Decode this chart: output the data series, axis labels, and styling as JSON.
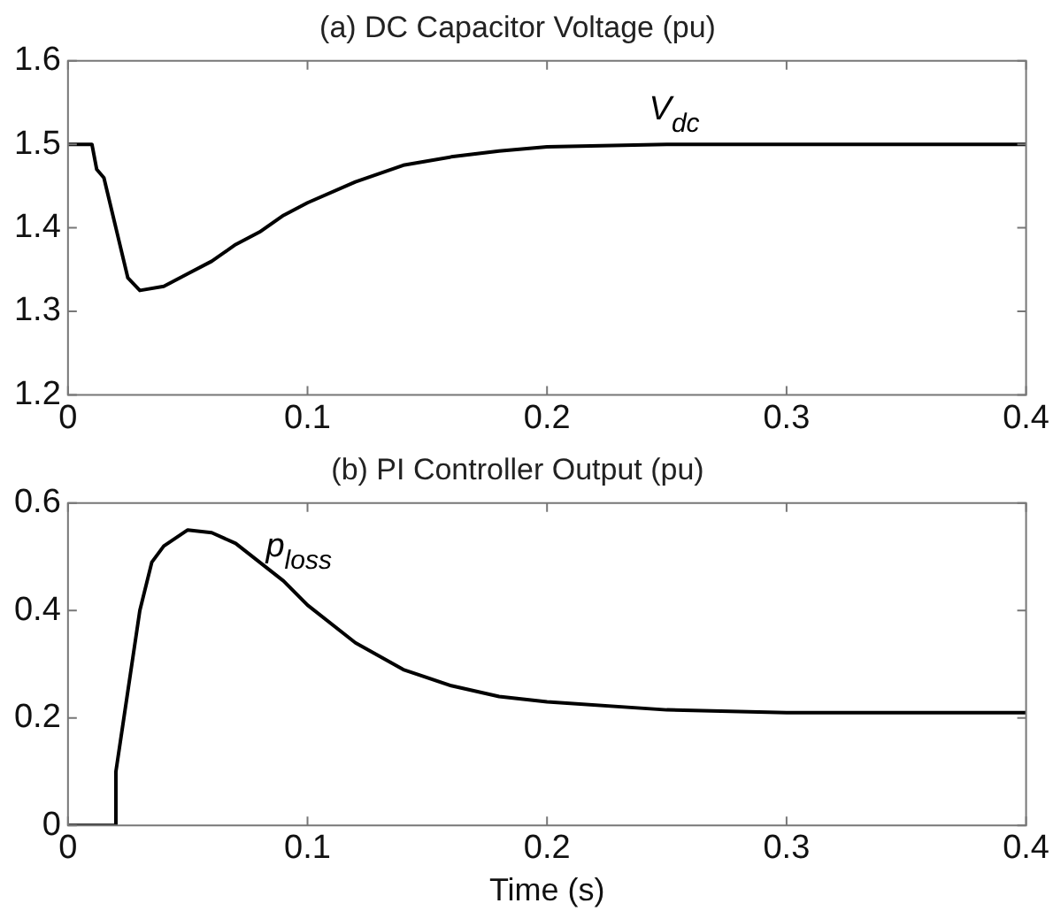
{
  "chart_data": [
    {
      "type": "line",
      "title": "(a) DC Capacitor Voltage (pu)",
      "xlim": [
        0,
        0.4
      ],
      "xticks": [
        0,
        0.1,
        0.2,
        0.3,
        0.4
      ],
      "ylim": [
        1.2,
        1.6
      ],
      "yticks": [
        1.2,
        1.3,
        1.4,
        1.5,
        1.6
      ],
      "grid": false,
      "legend": false,
      "marker": "none",
      "line_style": "solid",
      "series": [
        {
          "name": "V$_{dc}$",
          "color": "#000000",
          "x": [
            0,
            0.01,
            0.012,
            0.015,
            0.02,
            0.025,
            0.03,
            0.04,
            0.05,
            0.06,
            0.07,
            0.08,
            0.09,
            0.1,
            0.12,
            0.14,
            0.16,
            0.18,
            0.2,
            0.25,
            0.3,
            0.35,
            0.4
          ],
          "values": [
            1.5,
            1.5,
            1.47,
            1.46,
            1.4,
            1.34,
            1.325,
            1.33,
            1.345,
            1.36,
            1.38,
            1.395,
            1.415,
            1.43,
            1.455,
            1.475,
            1.485,
            1.492,
            1.497,
            1.5,
            1.5,
            1.5,
            1.5
          ]
        }
      ]
    },
    {
      "type": "line",
      "title": "(b) PI Controller Output (pu)",
      "xlabel": "Time (s)",
      "xlim": [
        0,
        0.4
      ],
      "xticks": [
        0,
        0.1,
        0.2,
        0.3,
        0.4
      ],
      "ylim": [
        0,
        0.6
      ],
      "yticks": [
        0,
        0.2,
        0.4,
        0.6
      ],
      "grid": false,
      "legend": false,
      "marker": "none",
      "line_style": "solid",
      "series": [
        {
          "name": "p$_{loss}$",
          "color": "#000000",
          "x": [
            0,
            0.02,
            0.02,
            0.025,
            0.03,
            0.035,
            0.04,
            0.05,
            0.06,
            0.07,
            0.08,
            0.09,
            0.1,
            0.12,
            0.14,
            0.16,
            0.18,
            0.2,
            0.25,
            0.3,
            0.35,
            0.4
          ],
          "values": [
            0,
            0,
            0.1,
            0.25,
            0.4,
            0.49,
            0.52,
            0.55,
            0.545,
            0.525,
            0.49,
            0.455,
            0.41,
            0.34,
            0.29,
            0.26,
            0.24,
            0.23,
            0.215,
            0.21,
            0.21,
            0.21
          ]
        }
      ]
    }
  ]
}
